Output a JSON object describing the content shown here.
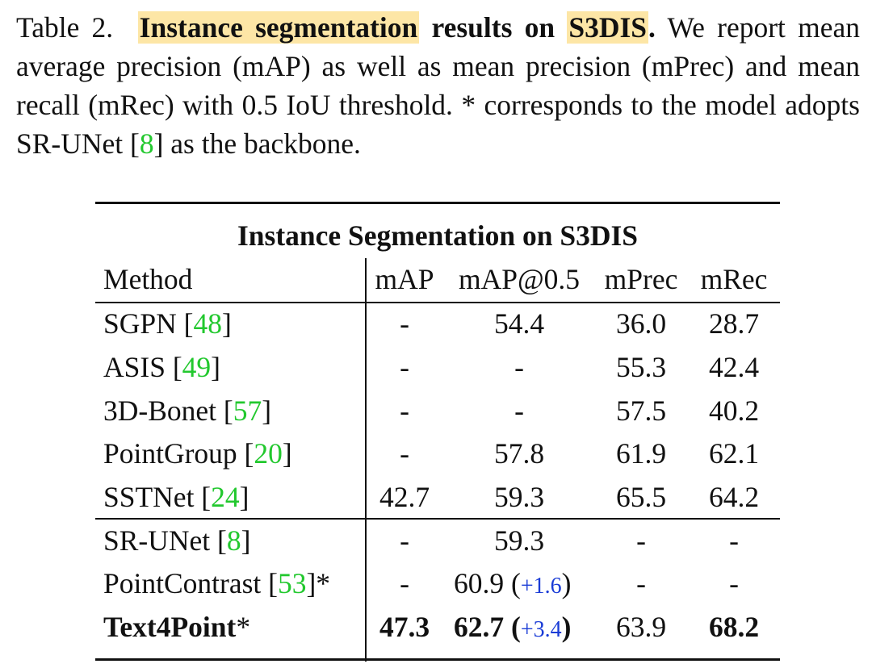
{
  "caption": {
    "lead": "Table 2.",
    "hl1": "Instance segmentation",
    "mid": "results on",
    "hl2": "S3DIS",
    "dot": ".",
    "rest1": "We report mean average precision (mAP) as well as mean precision (mPrec) and mean recall (mRec) with 0.5 IoU threshold. * corresponds to the model adopts SR-UNet [",
    "cite": "8",
    "rest2": "] as the backbone."
  },
  "table": {
    "title": "Instance Segmentation on S3DIS",
    "headers": [
      "Method",
      "mAP",
      "mAP@0.5",
      "mPrec",
      "mRec"
    ],
    "rows": [
      {
        "method": "SGPN [",
        "cite": "48",
        "close": "]",
        "mAP": "-",
        "map50": "54.4",
        "gain": "",
        "mPrec": "36.0",
        "mRec": "28.7"
      },
      {
        "method": "ASIS [",
        "cite": "49",
        "close": "]",
        "mAP": "-",
        "map50": "-",
        "gain": "",
        "mPrec": "55.3",
        "mRec": "42.4"
      },
      {
        "method": "3D-Bonet [",
        "cite": "57",
        "close": "]",
        "mAP": "-",
        "map50": "-",
        "gain": "",
        "mPrec": "57.5",
        "mRec": "40.2"
      },
      {
        "method": "PointGroup [",
        "cite": "20",
        "close": "]",
        "mAP": "-",
        "map50": "57.8",
        "gain": "",
        "mPrec": "61.9",
        "mRec": "62.1"
      },
      {
        "method": "SSTNet [",
        "cite": "24",
        "close": "]",
        "mAP": "42.7",
        "map50": "59.3",
        "gain": "",
        "mPrec": "65.5",
        "mRec": "64.2"
      },
      {
        "method": "SR-UNet [",
        "cite": "8",
        "close": "]",
        "mAP": "-",
        "map50": "59.3",
        "gain": "",
        "mPrec": "-",
        "mRec": "-"
      },
      {
        "method": "PointContrast [",
        "cite": "53",
        "close": "]*",
        "mAP": "-",
        "map50": "60.9",
        "gain": "+1.6",
        "mPrec": "-",
        "mRec": "-"
      },
      {
        "method": "Text4Point",
        "cite": "",
        "close": "*",
        "mAP": "47.3",
        "map50": "62.7",
        "gain": "+3.4",
        "mPrec": "63.9",
        "mRec": "68.2"
      }
    ]
  },
  "colors": {
    "highlight": "#fde6a6",
    "citation": "#22c82e",
    "gain": "#1a3cd6"
  }
}
